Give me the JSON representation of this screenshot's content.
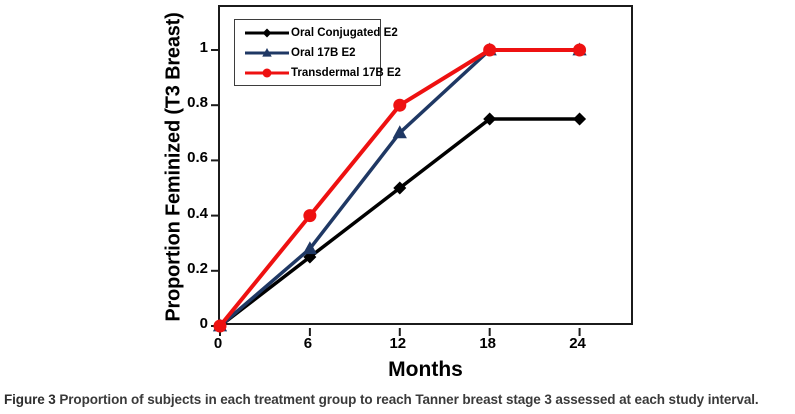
{
  "caption": {
    "prefix": "Figure 3",
    "text": "Proportion of subjects in each treatment group to reach Tanner breast stage 3 assessed at each study interval."
  },
  "chart_data": {
    "type": "line",
    "title": "",
    "xlabel": "Months",
    "ylabel": "Proportion Feminized (T3 Breast)",
    "x": [
      0,
      6,
      12,
      18,
      24
    ],
    "x_tick_labels": [
      "0",
      "6",
      "12",
      "18",
      "24"
    ],
    "y_ticks": [
      0,
      0.2,
      0.4,
      0.6,
      0.8,
      1
    ],
    "y_tick_labels": [
      "0",
      "0.2",
      "0.4",
      "0.6",
      "0.8",
      "1"
    ],
    "xlim": [
      0,
      27.7
    ],
    "ylim": [
      0,
      1.16
    ],
    "grid": false,
    "legend_position": "inside-top-left",
    "series": [
      {
        "name": "Oral Conjugated E2",
        "color": "#000000",
        "marker": "diamond",
        "line_width": 3.5,
        "values": [
          0,
          0.25,
          0.5,
          0.75,
          0.75
        ]
      },
      {
        "name": "Oral 17B E2",
        "color": "#1f3864",
        "marker": "triangle",
        "line_width": 3.5,
        "values": [
          0,
          0.28,
          0.7,
          1.0,
          1.0
        ]
      },
      {
        "name": "Transdermal 17B E2",
        "color": "#ee1111",
        "marker": "circle",
        "line_width": 4,
        "values": [
          0,
          0.4,
          0.8,
          1.0,
          1.0
        ]
      }
    ],
    "axis_color": "#1b1b1b"
  }
}
